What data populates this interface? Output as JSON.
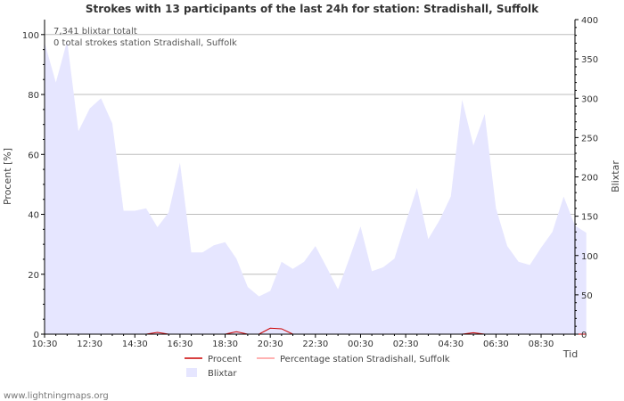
{
  "chart_data": {
    "type": "area",
    "title": "Strokes with 13 participants of the last 24h for station: Stradishall, Suffolk",
    "annotations": [
      "7,341 blixtar totalt",
      "0 total strokes station Stradishall, Suffolk"
    ],
    "ylabel_left": "Procent   [%]",
    "ylabel_right": "Blixtar",
    "xlabel": "Tid",
    "y_left": {
      "min": 0,
      "max": 105,
      "ticks": [
        0,
        20,
        40,
        60,
        80,
        100
      ]
    },
    "y_right": {
      "min": 0,
      "max": 400,
      "ticks": [
        0,
        50,
        100,
        150,
        200,
        250,
        300,
        350,
        400
      ]
    },
    "x_ticks": [
      "10:30",
      "12:30",
      "14:30",
      "16:30",
      "18:30",
      "20:30",
      "22:30",
      "00:30",
      "02:30",
      "04:30",
      "06:30",
      "08:30"
    ],
    "x_steps": 47,
    "series": [
      {
        "name": "Blixtar",
        "axis": "right",
        "color": "#e6e6ff",
        "values": [
          371,
          320,
          373,
          258,
          287,
          300,
          268,
          157,
          157,
          160,
          136,
          155,
          218,
          104,
          104,
          113,
          117,
          96,
          60,
          48,
          55,
          92,
          83,
          92,
          112,
          85,
          57,
          96,
          137,
          80,
          85,
          96,
          142,
          186,
          121,
          145,
          175,
          298,
          240,
          280,
          160,
          112,
          92,
          88,
          110,
          130,
          175,
          138,
          129
        ]
      },
      {
        "name": "Procent",
        "axis": "left",
        "color": "#cc0000",
        "values": [
          0,
          0,
          0,
          0,
          0,
          0,
          0,
          0,
          0,
          0,
          0.6,
          0,
          0,
          0,
          0,
          0,
          0,
          0.8,
          0,
          0,
          2.0,
          1.8,
          0,
          0,
          0,
          0,
          0,
          0,
          0,
          0,
          0,
          0,
          0,
          0,
          0,
          0,
          0,
          0,
          0.5,
          0,
          0,
          0,
          0,
          0,
          0,
          0,
          0,
          0,
          0
        ]
      },
      {
        "name": "Percentage station Stradishall, Suffolk",
        "axis": "left",
        "color": "#ff9999",
        "values": [
          0,
          0,
          0,
          0,
          0,
          0,
          0,
          0,
          0,
          0,
          0,
          0,
          0,
          0,
          0,
          0,
          0,
          0,
          0,
          0,
          0,
          0,
          0,
          0,
          0,
          0,
          0,
          0,
          0,
          0,
          0,
          0,
          0,
          0,
          0,
          0,
          0,
          0,
          0,
          0,
          0,
          0,
          0,
          0,
          0,
          0,
          0,
          0,
          0
        ]
      }
    ],
    "legend": [
      "Procent",
      "Percentage station Stradishall, Suffolk",
      "Blixtar"
    ]
  },
  "footer": {
    "source": "www.lightningmaps.org"
  }
}
